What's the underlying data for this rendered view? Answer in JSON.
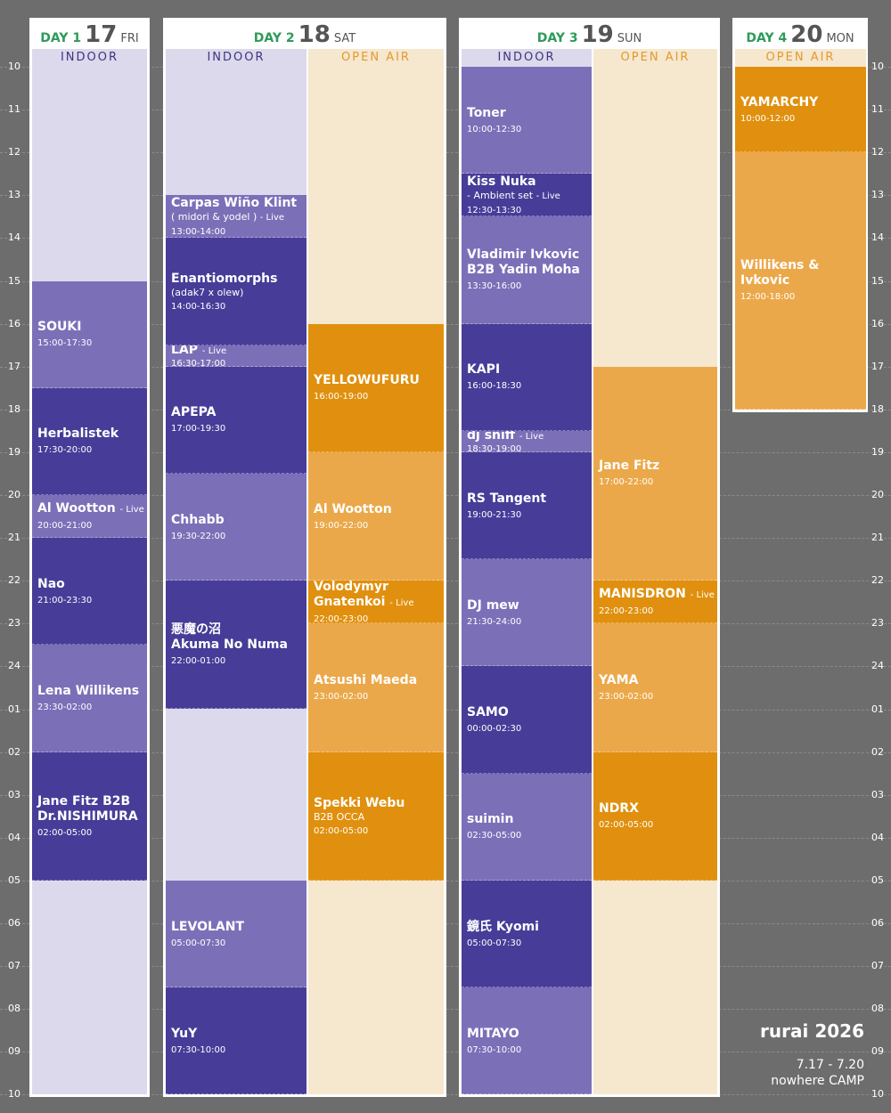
{
  "hours": [
    "10",
    "11",
    "12",
    "13",
    "14",
    "15",
    "16",
    "17",
    "18",
    "19",
    "20",
    "21",
    "22",
    "23",
    "24",
    "01",
    "02",
    "03",
    "04",
    "05",
    "06",
    "07",
    "08",
    "09",
    "10"
  ],
  "days": [
    {
      "day": "DAY 1",
      "date": "17",
      "weekday": "FRI",
      "stages": [
        {
          "name": "INDOOR",
          "colors": [
            "#7b70b8",
            "#473d98"
          ],
          "sets": [
            {
              "lines": [
                "SOUKI"
              ],
              "time": "15:00-17:30"
            },
            {
              "lines": [
                "Herbalistek"
              ],
              "time": "17:30-20:00"
            },
            {
              "lines": [
                "Al Wootton"
              ],
              "tag": "- Live",
              "time": "20:00-21:00"
            },
            {
              "lines": [
                "Nao"
              ],
              "time": "21:00-23:30"
            },
            {
              "lines": [
                "Lena Willikens"
              ],
              "time": "23:30-02:00"
            },
            {
              "lines": [
                "Jane Fitz B2B",
                "Dr.NISHIMURA"
              ],
              "time": "02:00-05:00"
            }
          ]
        }
      ]
    },
    {
      "day": "DAY 2",
      "date": "18",
      "weekday": "SAT",
      "stages": [
        {
          "name": "INDOOR",
          "colors": [
            "#7b70b8",
            "#473d98"
          ],
          "sets": [
            {
              "lines": [
                "Carpas Wiño Klint",
                "( midori & yodel )"
              ],
              "tag": "- Live",
              "time": "13:00-14:00"
            },
            {
              "lines": [
                "Enantiomorphs",
                "(adak7 x olew)"
              ],
              "time": "14:00-16:30"
            },
            {
              "lines": [
                "LAP"
              ],
              "tag": "- Live",
              "time": "16:30-17:00"
            },
            {
              "lines": [
                "APEPA"
              ],
              "time": "17:00-19:30"
            },
            {
              "lines": [
                "Chhabb"
              ],
              "time": "19:30-22:00"
            },
            {
              "lines": [
                "悪魔の沼",
                "Akuma No Numa"
              ],
              "time": "22:00-01:00"
            },
            {
              "lines": [
                "LEVOLANT"
              ],
              "time": "05:00-07:30"
            },
            {
              "lines": [
                "YuY"
              ],
              "time": "07:30-10:00"
            }
          ]
        },
        {
          "name": "OPEN AIR",
          "colors": [
            "#e0900e",
            "#eba84a"
          ],
          "sets": [
            {
              "lines": [
                "YELLOWUFURU"
              ],
              "time": "16:00-19:00"
            },
            {
              "lines": [
                "Al Wootton"
              ],
              "time": "19:00-22:00"
            },
            {
              "lines": [
                "Volodymyr",
                "Gnatenkoi"
              ],
              "tag": "- Live",
              "time": "22:00-23:00"
            },
            {
              "lines": [
                "Atsushi Maeda"
              ],
              "time": "23:00-02:00"
            },
            {
              "lines": [
                "Spekki Webu",
                "B2B OCCA"
              ],
              "time": "02:00-05:00"
            }
          ]
        }
      ]
    },
    {
      "day": "DAY 3",
      "date": "19",
      "weekday": "SUN",
      "stages": [
        {
          "name": "INDOOR",
          "colors": [
            "#7b70b8",
            "#473d98"
          ],
          "sets": [
            {
              "lines": [
                "Toner"
              ],
              "time": "10:00-12:30"
            },
            {
              "lines": [
                "Kiss Nuka",
                "- Ambient set"
              ],
              "tag": "- Live",
              "time": "12:30-13:30"
            },
            {
              "lines": [
                "Vladimir Ivkovic",
                "B2B Yadin Moha"
              ],
              "time": "13:30-16:00"
            },
            {
              "lines": [
                "KAPI"
              ],
              "time": "16:00-18:30"
            },
            {
              "lines": [
                "dj sniff"
              ],
              "tag": "- Live",
              "time": "18:30-19:00"
            },
            {
              "lines": [
                "RS Tangent"
              ],
              "time": "19:00-21:30"
            },
            {
              "lines": [
                "DJ mew"
              ],
              "time": "21:30-24:00"
            },
            {
              "lines": [
                "SAMO"
              ],
              "time": "00:00-02:30"
            },
            {
              "lines": [
                "suimin"
              ],
              "time": "02:30-05:00"
            },
            {
              "lines": [
                "鏡氏 Kyomi"
              ],
              "time": "05:00-07:30"
            },
            {
              "lines": [
                "MITAYO"
              ],
              "time": "07:30-10:00"
            }
          ]
        },
        {
          "name": "OPEN AIR",
          "colors": [
            "#eba84a",
            "#e0900e"
          ],
          "sets": [
            {
              "lines": [
                "Jane Fitz"
              ],
              "time": "17:00-22:00"
            },
            {
              "lines": [
                "MANISDRON"
              ],
              "tag": "- Live",
              "time": "22:00-23:00"
            },
            {
              "lines": [
                "YAMA"
              ],
              "time": "23:00-02:00"
            },
            {
              "lines": [
                "NDRX"
              ],
              "time": "02:00-05:00"
            }
          ]
        }
      ]
    },
    {
      "day": "DAY 4",
      "date": "20",
      "weekday": "MON",
      "stages": [
        {
          "name": "OPEN AIR",
          "colors": [
            "#e0900e",
            "#eba84a"
          ],
          "sets": [
            {
              "lines": [
                "YAMARCHY"
              ],
              "time": "10:00-12:00"
            },
            {
              "lines": [
                "Willikens &",
                "Ivkovic"
              ],
              "time": "12:00-18:00"
            }
          ]
        }
      ]
    }
  ],
  "footer": {
    "logo": "rurai 2026",
    "dates": "7.17 - 7.20",
    "venue": "nowhere CAMP"
  }
}
